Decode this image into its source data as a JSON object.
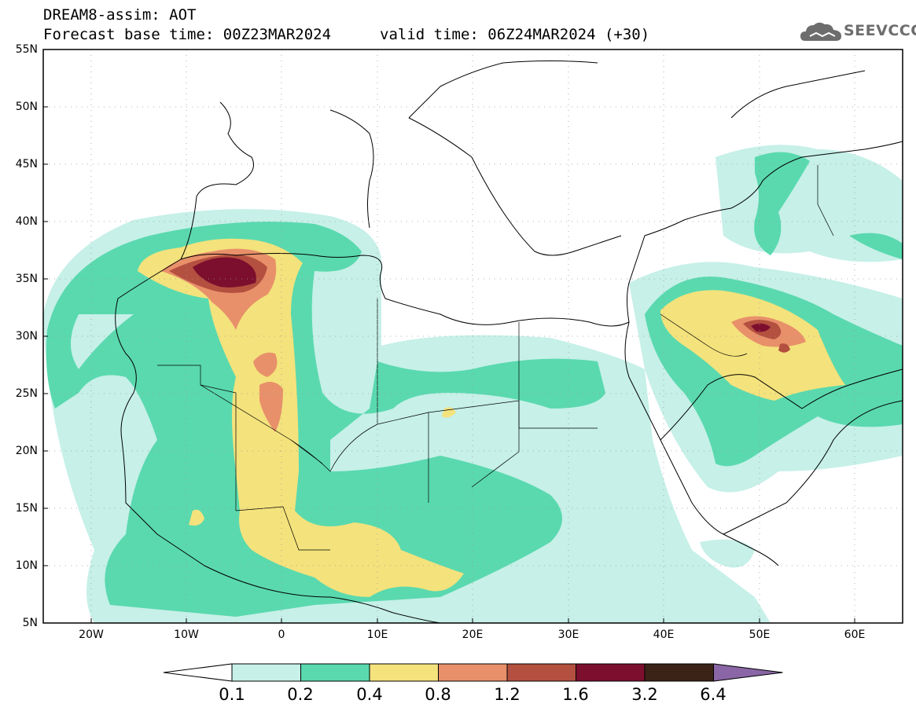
{
  "title": {
    "line1": "DREAM8-assim: AOT",
    "line2": "Forecast base time: 00Z23MAR2024",
    "line3": "valid time: 06Z24MAR2024 (+30)"
  },
  "logo": {
    "text": "SEEVCCC",
    "icon": "cloud-icon",
    "color": "#6d6d6d"
  },
  "map": {
    "lat_ticks": [
      "55N",
      "50N",
      "45N",
      "40N",
      "35N",
      "30N",
      "25N",
      "20N",
      "15N",
      "10N",
      "5N"
    ],
    "lon_ticks": [
      "20W",
      "10W",
      "0",
      "10E",
      "20E",
      "30E",
      "40E",
      "50E",
      "60E"
    ],
    "lat_range": [
      5,
      55
    ],
    "lon_range": [
      -25,
      65
    ],
    "grid": "dotted"
  },
  "colorbar": {
    "labels": [
      "0.1",
      "0.2",
      "0.4",
      "0.8",
      "1.2",
      "1.6",
      "3.2",
      "6.4"
    ],
    "colors": [
      "#ffffff",
      "#c6f0e8",
      "#5ad9ae",
      "#f4e27c",
      "#e8906a",
      "#b4503f",
      "#7c0f2e",
      "#3b2317",
      "#8a66a6"
    ]
  }
}
